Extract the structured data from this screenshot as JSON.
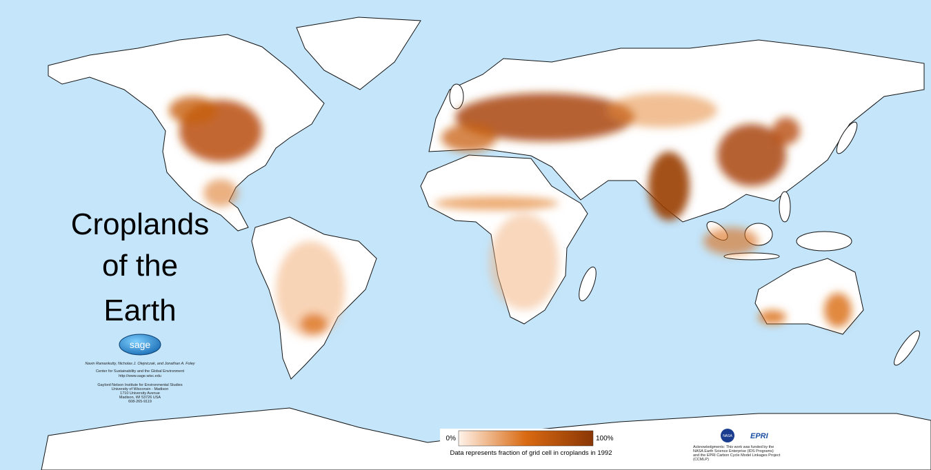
{
  "title_lines": [
    "Croplands",
    "of the",
    "Earth"
  ],
  "logo": "sage",
  "authors": "Navin Ramankutty, Nicholas J. Olejniczak, and Jonathan A. Foley",
  "center": [
    "Center for Sustainability and the Global Environment",
    "http://www.sage.wisc.edu"
  ],
  "address": [
    "Gaylord Nelson Institute for Environmental Studies",
    "University of Wisconsin - Madison",
    "1710 University Avenue",
    "Madison, WI 53726 USA",
    "608-265-9119"
  ],
  "legend": {
    "min": {
      "value": 0,
      "label": "0%"
    },
    "max": {
      "value": 100,
      "label": "100%"
    },
    "caption": "Data represents fraction of grid cell in croplands in 1992",
    "colors": [
      "#fff3ea",
      "#d96a12",
      "#8a3606"
    ]
  },
  "sponsors": [
    "NASA",
    "EPRI"
  ],
  "acknowledgments": [
    "Acknowledgments: This work was funded by the",
    "NASA Earth Science Enterprise (IDS Programs)",
    "and the EPRI Carbon Cycle Model Linkages Project",
    "(CCMLP)"
  ]
}
